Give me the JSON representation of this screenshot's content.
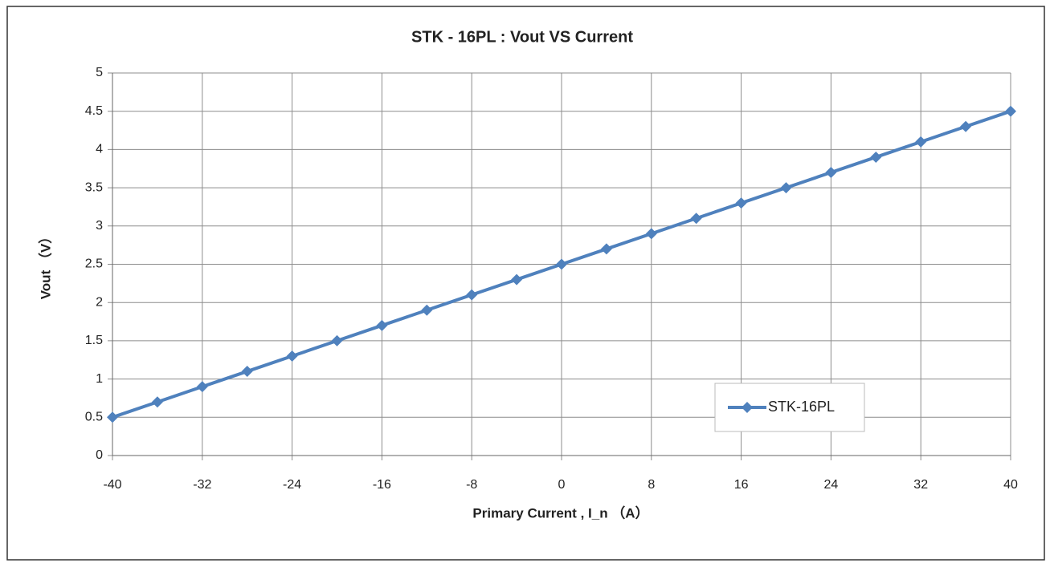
{
  "chart_data": {
    "type": "line",
    "title": "STK - 16PL : Vout VS Current",
    "x_label": "Primary Current , I_n （A）",
    "y_label": "Vout （V）",
    "x": [
      -40,
      -36,
      -32,
      -28,
      -24,
      -20,
      -16,
      -12,
      -8,
      -4,
      0,
      4,
      8,
      12,
      16,
      20,
      24,
      28,
      32,
      36,
      40
    ],
    "series": [
      {
        "name": "STK-16PL",
        "color": "#4f81bd",
        "values": [
          0.5,
          0.7,
          0.9,
          1.1,
          1.3,
          1.5,
          1.7,
          1.9,
          2.1,
          2.3,
          2.5,
          2.7,
          2.9,
          3.1,
          3.3,
          3.5,
          3.7,
          3.9,
          4.1,
          4.3,
          4.5
        ]
      }
    ],
    "xlim": [
      -40,
      40
    ],
    "xticks": [
      -40,
      -32,
      -24,
      -16,
      -8,
      0,
      8,
      16,
      24,
      32,
      40
    ],
    "ylim": [
      0,
      5
    ],
    "yticks": [
      0,
      0.5,
      1,
      1.5,
      2,
      2.5,
      3,
      3.5,
      4,
      4.5,
      5
    ],
    "grid": true,
    "legend": "lower right"
  }
}
